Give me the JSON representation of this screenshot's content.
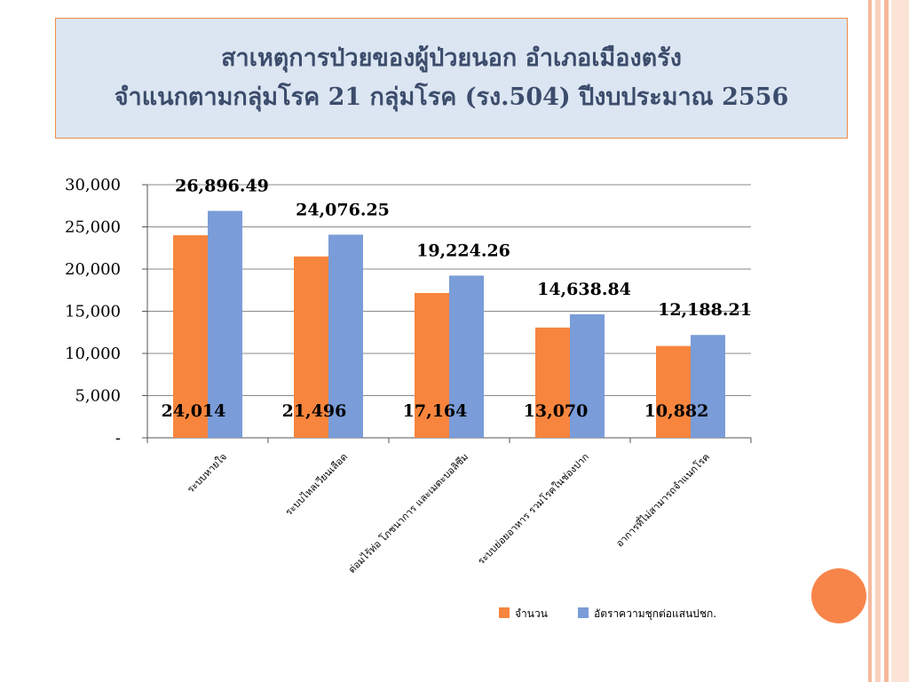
{
  "title": {
    "line1": "สาเหตุการป่วยของผู้ป่วยนอก  อำเภอเมืองตรัง",
    "line2": "จำแนกตามกลุ่มโรค 21 กลุ่มโรค (รง.504) ปีงบประมาณ 2556"
  },
  "colors": {
    "series_count": "#f7853d",
    "series_rate": "#7a9cd8",
    "title_bg": "#dce6f2",
    "title_border": "#f08a48",
    "title_text": "#3c4c6c",
    "accent_circle": "#f7854a"
  },
  "chart_data": {
    "type": "bar",
    "title": "",
    "xlabel": "",
    "ylabel": "",
    "ylim": [
      0,
      30000
    ],
    "yticks": [
      {
        "value": 0,
        "label": "-"
      },
      {
        "value": 5000,
        "label": "5,000"
      },
      {
        "value": 10000,
        "label": "10,000"
      },
      {
        "value": 15000,
        "label": "15,000"
      },
      {
        "value": 20000,
        "label": "20,000"
      },
      {
        "value": 25000,
        "label": "25,000"
      },
      {
        "value": 30000,
        "label": "30,000"
      }
    ],
    "grid": true,
    "legend_position": "bottom-right",
    "categories": [
      "ระบบหายใจ",
      "ระบบไหลเวียนเลือด",
      "ต่อมไร้ท่อ โภชนาการ และเมตะบอลิซึม",
      "ระบบย่อยอาหาร รวมโรคในช่องปาก",
      "อาการที่ไม่สามารถจำแนกโรค"
    ],
    "series": [
      {
        "name": "จำนวน",
        "values": [
          24014,
          21496,
          17164,
          13070,
          10882
        ],
        "labels": [
          "24,014",
          "21,496",
          "17,164",
          "13,070",
          "10,882"
        ]
      },
      {
        "name": "อัตราความชุกต่อแสนปชก.",
        "values": [
          26896.49,
          24076.25,
          19224.26,
          14638.84,
          12188.21
        ],
        "labels": [
          "26,896.49",
          "24,076.25",
          "19,224.26",
          "14,638.84",
          "12,188.21"
        ]
      }
    ]
  }
}
